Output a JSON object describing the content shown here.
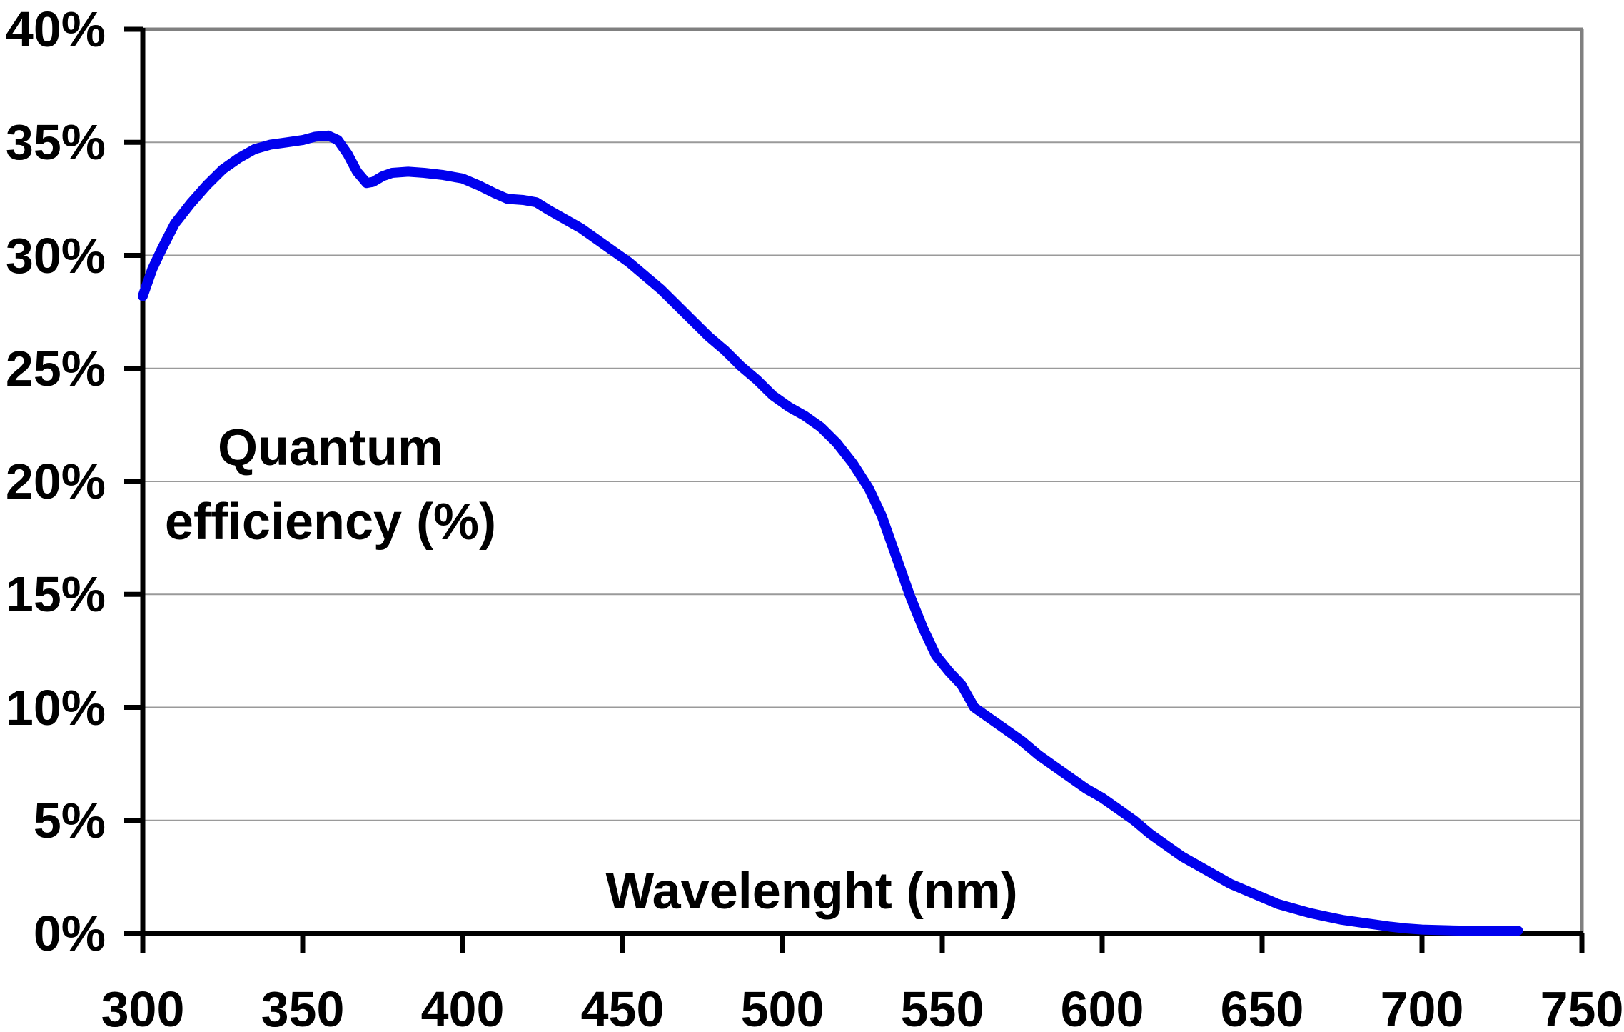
{
  "chart_data": {
    "type": "line",
    "title": "",
    "xlabel": "Wavelenght (nm)",
    "ylabel": "Quantum efficiency (%)",
    "ylabel_lines": [
      "Quantum",
      "efficiency (%)"
    ],
    "xlim": [
      300,
      750
    ],
    "ylim": [
      0,
      40
    ],
    "x_ticks": [
      300,
      350,
      400,
      450,
      500,
      550,
      600,
      650,
      700,
      750
    ],
    "x_tick_labels": [
      "300",
      "350",
      "400",
      "450",
      "500",
      "550",
      "600",
      "650",
      "700",
      "750"
    ],
    "y_ticks": [
      0,
      5,
      10,
      15,
      20,
      25,
      30,
      35,
      40
    ],
    "y_tick_labels": [
      "0%",
      "5%",
      "10%",
      "15%",
      "20%",
      "25%",
      "30%",
      "35%",
      "40%"
    ],
    "grid": "horizontal-only",
    "legend": "none",
    "colors": {
      "line": "#0000EE",
      "gridline": "#9A9A9A",
      "border": "#808080",
      "axis": "#000000",
      "text": "#000000",
      "background": "#FFFFFF"
    },
    "series": [
      {
        "name": "Quantum efficiency",
        "points": [
          [
            300,
            28.2
          ],
          [
            303,
            29.4
          ],
          [
            306,
            30.3
          ],
          [
            310,
            31.4
          ],
          [
            315,
            32.3
          ],
          [
            320,
            33.1
          ],
          [
            325,
            33.8
          ],
          [
            330,
            34.3
          ],
          [
            335,
            34.7
          ],
          [
            340,
            34.9
          ],
          [
            345,
            35.0
          ],
          [
            350,
            35.1
          ],
          [
            354,
            35.25
          ],
          [
            358,
            35.3
          ],
          [
            361,
            35.1
          ],
          [
            364,
            34.5
          ],
          [
            367,
            33.7
          ],
          [
            370,
            33.2
          ],
          [
            372,
            33.25
          ],
          [
            375,
            33.5
          ],
          [
            378,
            33.65
          ],
          [
            383,
            33.7
          ],
          [
            388,
            33.65
          ],
          [
            394,
            33.55
          ],
          [
            400,
            33.4
          ],
          [
            405,
            33.1
          ],
          [
            410,
            32.75
          ],
          [
            414,
            32.5
          ],
          [
            419,
            32.45
          ],
          [
            423,
            32.35
          ],
          [
            427,
            32.0
          ],
          [
            432,
            31.6
          ],
          [
            437,
            31.2
          ],
          [
            442,
            30.7
          ],
          [
            447,
            30.2
          ],
          [
            452,
            29.7
          ],
          [
            457,
            29.1
          ],
          [
            462,
            28.5
          ],
          [
            467,
            27.8
          ],
          [
            472,
            27.1
          ],
          [
            477,
            26.4
          ],
          [
            482,
            25.8
          ],
          [
            487,
            25.1
          ],
          [
            492,
            24.5
          ],
          [
            497,
            23.8
          ],
          [
            502,
            23.3
          ],
          [
            507,
            22.9
          ],
          [
            512,
            22.4
          ],
          [
            517,
            21.7
          ],
          [
            522,
            20.8
          ],
          [
            527,
            19.7
          ],
          [
            531,
            18.5
          ],
          [
            535,
            16.9
          ],
          [
            540,
            14.9
          ],
          [
            544,
            13.5
          ],
          [
            548,
            12.3
          ],
          [
            552,
            11.6
          ],
          [
            556,
            11.0
          ],
          [
            560,
            10.0
          ],
          [
            565,
            9.5
          ],
          [
            570,
            9.0
          ],
          [
            575,
            8.5
          ],
          [
            580,
            7.9
          ],
          [
            585,
            7.4
          ],
          [
            590,
            6.9
          ],
          [
            595,
            6.4
          ],
          [
            600,
            6.0
          ],
          [
            605,
            5.5
          ],
          [
            610,
            5.0
          ],
          [
            615,
            4.4
          ],
          [
            620,
            3.9
          ],
          [
            625,
            3.4
          ],
          [
            630,
            3.0
          ],
          [
            635,
            2.6
          ],
          [
            640,
            2.2
          ],
          [
            645,
            1.9
          ],
          [
            650,
            1.6
          ],
          [
            655,
            1.3
          ],
          [
            660,
            1.1
          ],
          [
            665,
            0.9
          ],
          [
            670,
            0.75
          ],
          [
            675,
            0.6
          ],
          [
            680,
            0.5
          ],
          [
            685,
            0.4
          ],
          [
            690,
            0.3
          ],
          [
            695,
            0.22
          ],
          [
            700,
            0.17
          ],
          [
            705,
            0.15
          ],
          [
            710,
            0.13
          ],
          [
            715,
            0.12
          ],
          [
            720,
            0.12
          ],
          [
            725,
            0.12
          ],
          [
            730,
            0.12
          ]
        ]
      }
    ]
  }
}
